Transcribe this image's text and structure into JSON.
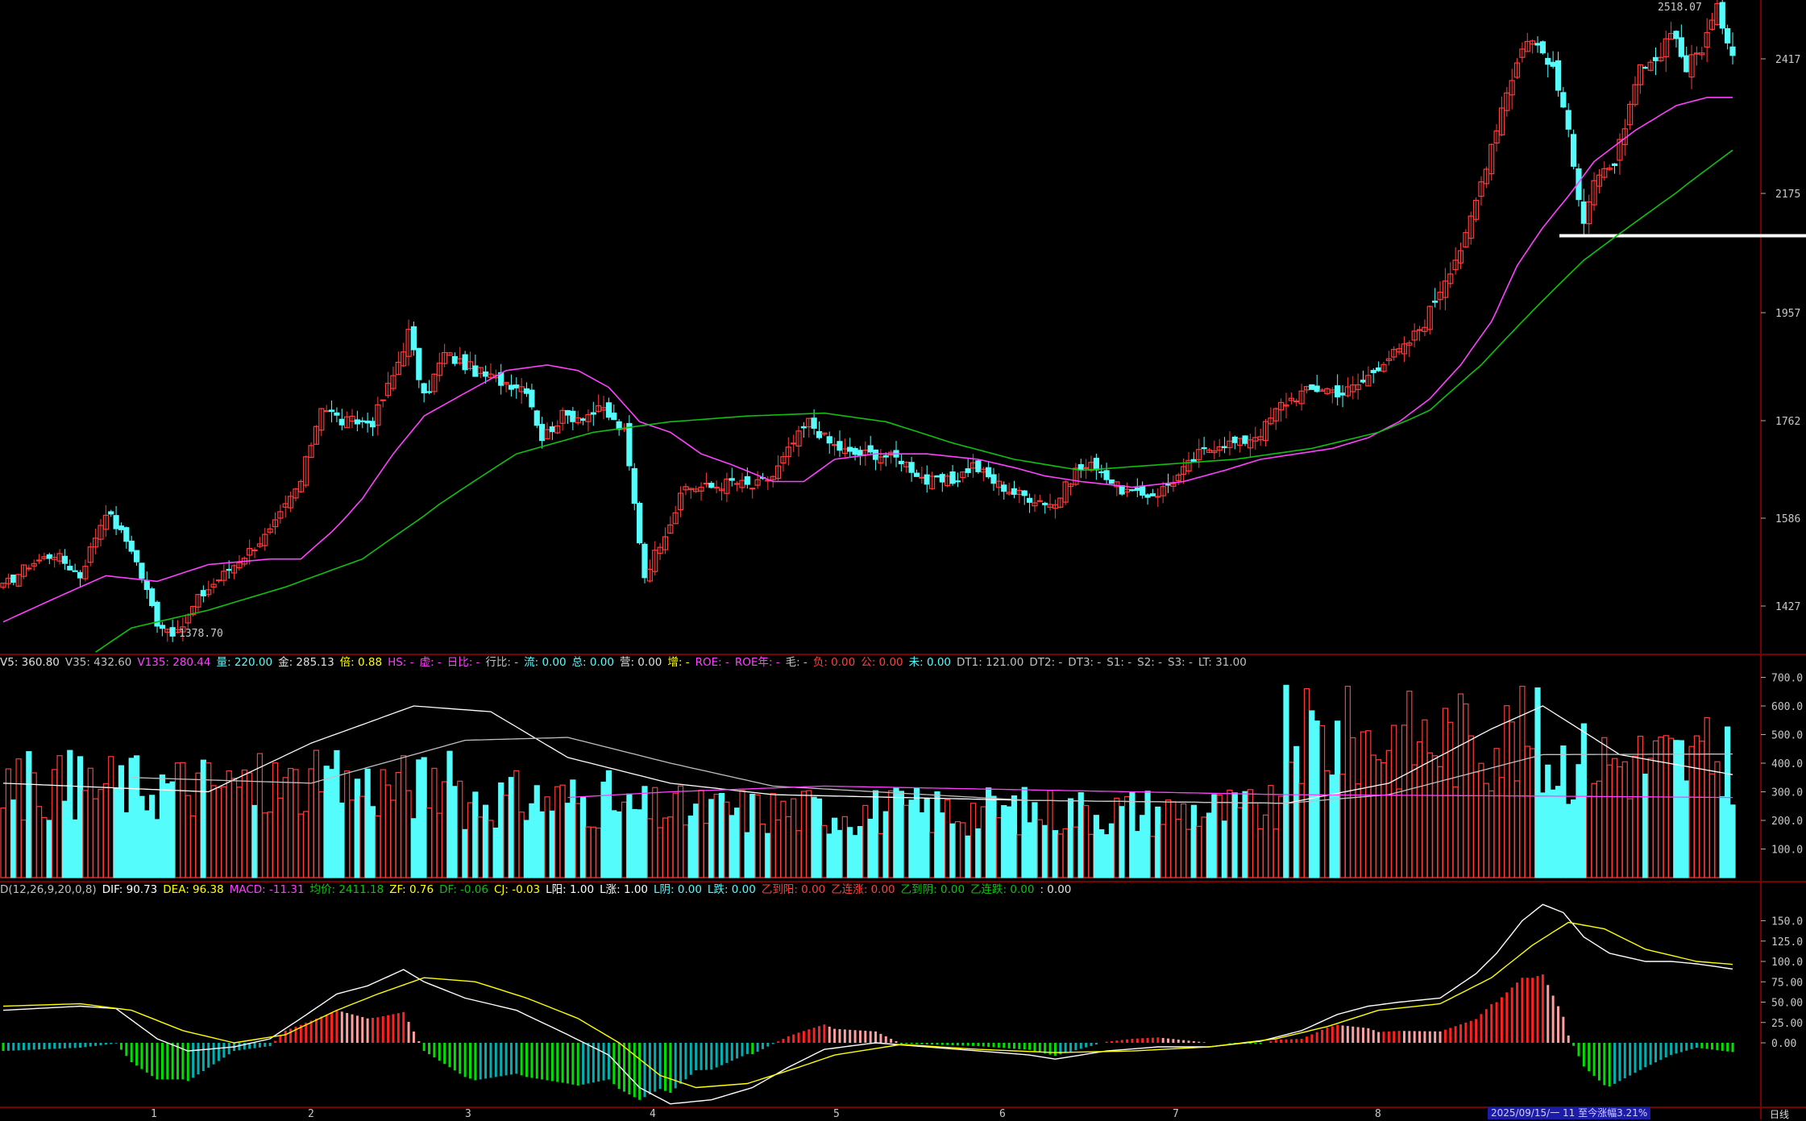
{
  "colors": {
    "up": "#ff3b3b",
    "down": "#54fcfc",
    "ma_short": "#ff40ff",
    "ma_long": "#10c010",
    "vol_ma1": "#ffffff",
    "vol_ma2": "#c0c0c0",
    "vol_ma3": "#ff40ff",
    "dif": "#ffffff",
    "dea": "#ffff00",
    "macd_pos": "#ff2020",
    "macd_pos_light": "#ffa0a0",
    "macd_neg": "#00e000",
    "macd_neg_dark": "#00b0b0",
    "grid": "#7a0000",
    "support_line": "#ffffff"
  },
  "price_panel": {
    "y_ticks": [
      "2417",
      "2175",
      "1957",
      "1762",
      "1586",
      "1427"
    ],
    "high_label": "2518.07",
    "low_label": "1378.70"
  },
  "volume_panel": {
    "header": [
      {
        "t": "V5: 360.80",
        "c": "#e0e0e0"
      },
      {
        "t": "V35: 432.60",
        "c": "#c0c0c0"
      },
      {
        "t": "V135: 280.44",
        "c": "#ff40ff"
      },
      {
        "t": "量: 220.00",
        "c": "#54fcfc"
      },
      {
        "t": "金: 285.13",
        "c": "#e0e0e0"
      },
      {
        "t": "倍: 0.88",
        "c": "#ffff00"
      },
      {
        "t": "HS: -",
        "c": "#ff40ff"
      },
      {
        "t": "虚: -",
        "c": "#ff40ff"
      },
      {
        "t": "日比: -",
        "c": "#ff40ff"
      },
      {
        "t": "行比: -",
        "c": "#c0c0c0"
      },
      {
        "t": "流: 0.00",
        "c": "#54fcfc"
      },
      {
        "t": "总: 0.00",
        "c": "#54fcfc"
      },
      {
        "t": "营: 0.00",
        "c": "#e0e0e0"
      },
      {
        "t": "增: -",
        "c": "#ffff00"
      },
      {
        "t": "ROE: -",
        "c": "#ff40ff"
      },
      {
        "t": "ROE年: -",
        "c": "#ff40ff"
      },
      {
        "t": "毛: -",
        "c": "#c0c0c0"
      },
      {
        "t": "负: 0.00",
        "c": "#ff4040"
      },
      {
        "t": "公: 0.00",
        "c": "#ff4040"
      },
      {
        "t": "未: 0.00",
        "c": "#54fcfc"
      },
      {
        "t": "DT1: 121.00",
        "c": "#c0c0c0"
      },
      {
        "t": "DT2: -",
        "c": "#c0c0c0"
      },
      {
        "t": "DT3: -",
        "c": "#c0c0c0"
      },
      {
        "t": "S1: -",
        "c": "#c0c0c0"
      },
      {
        "t": "S2: -",
        "c": "#c0c0c0"
      },
      {
        "t": "S3: -",
        "c": "#c0c0c0"
      },
      {
        "t": "LT: 31.00",
        "c": "#c0c0c0"
      }
    ],
    "y_ticks": [
      "700.0",
      "600.0",
      "500.0",
      "400.0",
      "300.0",
      "200.0",
      "100.0"
    ]
  },
  "macd_panel": {
    "header": [
      {
        "t": "D(12,26,9,20,0,8)",
        "c": "#c0c0c0"
      },
      {
        "t": "DIF: 90.73",
        "c": "#ffffff"
      },
      {
        "t": "DEA: 96.38",
        "c": "#ffff00"
      },
      {
        "t": "MACD: -11.31",
        "c": "#ff40ff"
      },
      {
        "t": "均价: 2411.18",
        "c": "#10c010"
      },
      {
        "t": "ZF: 0.76",
        "c": "#ffff00"
      },
      {
        "t": "DF: -0.06",
        "c": "#10c010"
      },
      {
        "t": "CJ: -0.03",
        "c": "#ffff00"
      },
      {
        "t": "L阳: 1.00",
        "c": "#ffffff"
      },
      {
        "t": "L涨: 1.00",
        "c": "#ffffff"
      },
      {
        "t": "L阴: 0.00",
        "c": "#54fcfc"
      },
      {
        "t": "L跌: 0.00",
        "c": "#54fcfc"
      },
      {
        "t": "乙到阳: 0.00",
        "c": "#ff4040"
      },
      {
        "t": "乙连涨: 0.00",
        "c": "#ff4040"
      },
      {
        "t": "乙到阴: 0.00",
        "c": "#10c010"
      },
      {
        "t": "乙连跌: 0.00",
        "c": "#10c010"
      },
      {
        "t": ": 0.00",
        "c": "#e0e0e0"
      }
    ],
    "y_ticks": [
      "150.0",
      "125.0",
      "100.0",
      "75.00",
      "50.00",
      "25.00",
      "0.00"
    ]
  },
  "x_axis": {
    "months": [
      "1",
      "2",
      "3",
      "4",
      "5",
      "6",
      "7",
      "8"
    ]
  },
  "status_bar": {
    "text": "2025/09/15/一 11 至今涨幅3.21%",
    "period": "日线"
  },
  "chart_data": {
    "type": "candlestick",
    "y_axis_price_ticks": [
      2417,
      2175,
      1957,
      1762,
      1586,
      1427
    ],
    "price_high": 2518.07,
    "price_low": 1378.7,
    "support_level": 2095,
    "volume_ticks": [
      700,
      600,
      500,
      400,
      300,
      200,
      100
    ],
    "macd_ticks": [
      150,
      125,
      100,
      75,
      50,
      25,
      0
    ],
    "latest": {
      "V5": 360.8,
      "V35": 432.6,
      "V135": 280.44,
      "volume": 220.0,
      "DIF": 90.73,
      "DEA": 96.38,
      "MACD": -11.31,
      "avg_price": 2411.18
    },
    "price_keypoints": [
      [
        0,
        1460
      ],
      [
        5,
        1500
      ],
      [
        10,
        1520
      ],
      [
        15,
        1480
      ],
      [
        20,
        1600
      ],
      [
        25,
        1530
      ],
      [
        30,
        1400
      ],
      [
        34,
        1378.7
      ],
      [
        38,
        1440
      ],
      [
        45,
        1500
      ],
      [
        52,
        1560
      ],
      [
        58,
        1650
      ],
      [
        62,
        1790
      ],
      [
        66,
        1760
      ],
      [
        72,
        1760
      ],
      [
        76,
        1840
      ],
      [
        79,
        1920
      ],
      [
        82,
        1800
      ],
      [
        86,
        1880
      ],
      [
        90,
        1860
      ],
      [
        94,
        1840
      ],
      [
        98,
        1830
      ],
      [
        102,
        1820
      ],
      [
        105,
        1730
      ],
      [
        109,
        1770
      ],
      [
        112,
        1770
      ],
      [
        117,
        1780
      ],
      [
        121,
        1740
      ],
      [
        125,
        1480
      ],
      [
        129,
        1560
      ],
      [
        133,
        1640
      ],
      [
        138,
        1640
      ],
      [
        142,
        1650
      ],
      [
        146,
        1640
      ],
      [
        150,
        1660
      ],
      [
        154,
        1720
      ],
      [
        157,
        1760
      ],
      [
        161,
        1720
      ],
      [
        165,
        1700
      ],
      [
        170,
        1700
      ],
      [
        175,
        1690
      ],
      [
        180,
        1650
      ],
      [
        185,
        1650
      ],
      [
        189,
        1680
      ],
      [
        193,
        1650
      ],
      [
        197,
        1630
      ],
      [
        201,
        1620
      ],
      [
        205,
        1610
      ],
      [
        209,
        1670
      ],
      [
        213,
        1680
      ],
      [
        217,
        1640
      ],
      [
        221,
        1625
      ],
      [
        225,
        1630
      ],
      [
        229,
        1660
      ],
      [
        233,
        1700
      ],
      [
        237,
        1720
      ],
      [
        241,
        1720
      ],
      [
        245,
        1740
      ],
      [
        249,
        1790
      ],
      [
        253,
        1810
      ],
      [
        257,
        1820
      ],
      [
        261,
        1810
      ],
      [
        265,
        1830
      ],
      [
        269,
        1870
      ],
      [
        273,
        1890
      ],
      [
        277,
        1940
      ],
      [
        281,
        2020
      ],
      [
        285,
        2090
      ],
      [
        289,
        2230
      ],
      [
        293,
        2360
      ],
      [
        297,
        2460
      ],
      [
        301,
        2420
      ],
      [
        304,
        2330
      ],
      [
        306,
        2220
      ],
      [
        308,
        2130
      ],
      [
        310,
        2200
      ],
      [
        313,
        2210
      ],
      [
        316,
        2280
      ],
      [
        319,
        2400
      ],
      [
        322,
        2400
      ],
      [
        325,
        2480
      ],
      [
        328,
        2400
      ],
      [
        331,
        2440
      ],
      [
        334,
        2510
      ],
      [
        336,
        2460
      ],
      [
        337,
        2430
      ]
    ],
    "macd_dif_keypoints": [
      [
        0,
        40
      ],
      [
        15,
        45
      ],
      [
        22,
        42
      ],
      [
        30,
        5
      ],
      [
        36,
        -10
      ],
      [
        45,
        -5
      ],
      [
        52,
        5
      ],
      [
        58,
        30
      ],
      [
        65,
        60
      ],
      [
        71,
        70
      ],
      [
        78,
        90
      ],
      [
        82,
        75
      ],
      [
        90,
        55
      ],
      [
        100,
        40
      ],
      [
        110,
        10
      ],
      [
        118,
        -15
      ],
      [
        124,
        -55
      ],
      [
        130,
        -75
      ],
      [
        138,
        -70
      ],
      [
        146,
        -55
      ],
      [
        153,
        -30
      ],
      [
        160,
        -8
      ],
      [
        170,
        0
      ],
      [
        180,
        -5
      ],
      [
        190,
        -10
      ],
      [
        200,
        -15
      ],
      [
        205,
        -20
      ],
      [
        215,
        -10
      ],
      [
        225,
        -5
      ],
      [
        235,
        -5
      ],
      [
        245,
        2
      ],
      [
        253,
        15
      ],
      [
        260,
        35
      ],
      [
        266,
        45
      ],
      [
        272,
        50
      ],
      [
        280,
        55
      ],
      [
        287,
        85
      ],
      [
        291,
        110
      ],
      [
        296,
        150
      ],
      [
        300,
        170
      ],
      [
        304,
        160
      ],
      [
        308,
        130
      ],
      [
        313,
        110
      ],
      [
        320,
        100
      ],
      [
        325,
        100
      ],
      [
        330,
        97
      ],
      [
        337,
        90.73
      ]
    ],
    "macd_dea_keypoints": [
      [
        0,
        45
      ],
      [
        15,
        48
      ],
      [
        25,
        40
      ],
      [
        35,
        15
      ],
      [
        45,
        0
      ],
      [
        55,
        10
      ],
      [
        65,
        40
      ],
      [
        73,
        60
      ],
      [
        82,
        80
      ],
      [
        92,
        75
      ],
      [
        102,
        55
      ],
      [
        112,
        30
      ],
      [
        120,
        0
      ],
      [
        128,
        -40
      ],
      [
        135,
        -55
      ],
      [
        145,
        -50
      ],
      [
        155,
        -30
      ],
      [
        162,
        -15
      ],
      [
        175,
        -2
      ],
      [
        190,
        -8
      ],
      [
        205,
        -12
      ],
      [
        220,
        -10
      ],
      [
        235,
        -5
      ],
      [
        248,
        5
      ],
      [
        258,
        20
      ],
      [
        268,
        40
      ],
      [
        280,
        48
      ],
      [
        290,
        80
      ],
      [
        298,
        120
      ],
      [
        305,
        148
      ],
      [
        312,
        140
      ],
      [
        320,
        115
      ],
      [
        330,
        100
      ],
      [
        337,
        96.38
      ]
    ],
    "ma_short_keypoints": [
      [
        0,
        1400
      ],
      [
        10,
        1440
      ],
      [
        20,
        1480
      ],
      [
        30,
        1470
      ],
      [
        40,
        1500
      ],
      [
        52,
        1510
      ],
      [
        58,
        1510
      ],
      [
        64,
        1560
      ],
      [
        70,
        1620
      ],
      [
        76,
        1700
      ],
      [
        82,
        1770
      ],
      [
        90,
        1810
      ],
      [
        98,
        1850
      ],
      [
        106,
        1860
      ],
      [
        112,
        1850
      ],
      [
        118,
        1820
      ],
      [
        124,
        1760
      ],
      [
        130,
        1740
      ],
      [
        136,
        1700
      ],
      [
        142,
        1680
      ],
      [
        150,
        1650
      ],
      [
        156,
        1650
      ],
      [
        162,
        1690
      ],
      [
        170,
        1700
      ],
      [
        180,
        1700
      ],
      [
        190,
        1690
      ],
      [
        197,
        1675
      ],
      [
        203,
        1660
      ],
      [
        210,
        1650
      ],
      [
        220,
        1640
      ],
      [
        230,
        1650
      ],
      [
        238,
        1670
      ],
      [
        245,
        1690
      ],
      [
        252,
        1700
      ],
      [
        259,
        1710
      ],
      [
        266,
        1730
      ],
      [
        272,
        1760
      ],
      [
        278,
        1800
      ],
      [
        284,
        1860
      ],
      [
        290,
        1940
      ],
      [
        295,
        2040
      ],
      [
        300,
        2110
      ],
      [
        305,
        2170
      ],
      [
        310,
        2230
      ],
      [
        318,
        2285
      ],
      [
        326,
        2330
      ],
      [
        332,
        2345
      ],
      [
        337,
        2345
      ]
    ],
    "ma_long_keypoints": [
      [
        18,
        1350
      ],
      [
        25,
        1390
      ],
      [
        40,
        1420
      ],
      [
        55,
        1460
      ],
      [
        70,
        1510
      ],
      [
        85,
        1610
      ],
      [
        100,
        1700
      ],
      [
        115,
        1740
      ],
      [
        130,
        1760
      ],
      [
        145,
        1770
      ],
      [
        160,
        1775
      ],
      [
        172,
        1760
      ],
      [
        185,
        1720
      ],
      [
        197,
        1690
      ],
      [
        210,
        1670
      ],
      [
        225,
        1680
      ],
      [
        240,
        1690
      ],
      [
        255,
        1710
      ],
      [
        268,
        1740
      ],
      [
        278,
        1780
      ],
      [
        288,
        1860
      ],
      [
        298,
        1960
      ],
      [
        308,
        2050
      ],
      [
        318,
        2120
      ],
      [
        328,
        2190
      ],
      [
        337,
        2250
      ]
    ]
  }
}
